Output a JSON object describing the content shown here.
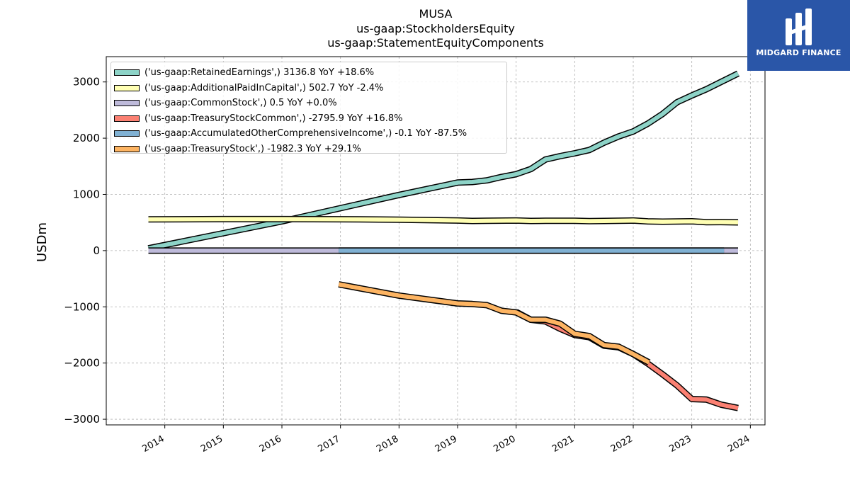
{
  "title": {
    "line1": "MUSA",
    "line2": "us-gaap:StockholdersEquity",
    "line3": "us-gaap:StatementEquityComponents"
  },
  "logo": {
    "text": "MIDGARD FINANCE",
    "color": "#2a56a8"
  },
  "chart_data": {
    "type": "line",
    "ylabel": "USDm",
    "xlabel": "",
    "ylim": [
      -3100,
      3450
    ],
    "xlim": [
      2013.0,
      2024.25
    ],
    "x_ticks": [
      2014,
      2015,
      2016,
      2017,
      2018,
      2019,
      2020,
      2021,
      2022,
      2023,
      2024
    ],
    "y_ticks": [
      -3000,
      -2000,
      -1000,
      0,
      1000,
      2000,
      3000
    ],
    "y_tick_labels": [
      "−3000",
      "−2000",
      "−1000",
      "0",
      "1000",
      "2000",
      "3000"
    ],
    "grid": true,
    "legend_position": "top-left",
    "series": [
      {
        "name": "('us-gaap:RetainedEarnings',) 3136.8 YoY +18.6%",
        "color": "#8dd3c7",
        "points": [
          [
            2013.72,
            40
          ],
          [
            2016.0,
            520
          ],
          [
            2018.0,
            990
          ],
          [
            2019.0,
            1210
          ],
          [
            2019.25,
            1220
          ],
          [
            2019.5,
            1250
          ],
          [
            2019.75,
            1310
          ],
          [
            2020.0,
            1360
          ],
          [
            2020.25,
            1450
          ],
          [
            2020.5,
            1620
          ],
          [
            2020.75,
            1680
          ],
          [
            2021.0,
            1730
          ],
          [
            2021.25,
            1790
          ],
          [
            2021.5,
            1920
          ],
          [
            2021.75,
            2030
          ],
          [
            2022.0,
            2120
          ],
          [
            2022.25,
            2260
          ],
          [
            2022.5,
            2430
          ],
          [
            2022.75,
            2640
          ],
          [
            2023.0,
            2760
          ],
          [
            2023.25,
            2870
          ],
          [
            2023.5,
            3000
          ],
          [
            2023.79,
            3150
          ]
        ]
      },
      {
        "name": "('us-gaap:AdditionalPaidInCapital',) 502.7 YoY -2.4%",
        "color": "#ffffb3",
        "points": [
          [
            2013.72,
            555
          ],
          [
            2015.0,
            560
          ],
          [
            2016.0,
            560
          ],
          [
            2017.0,
            558
          ],
          [
            2018.0,
            550
          ],
          [
            2019.0,
            535
          ],
          [
            2019.25,
            528
          ],
          [
            2019.5,
            530
          ],
          [
            2020.0,
            535
          ],
          [
            2020.25,
            528
          ],
          [
            2020.5,
            530
          ],
          [
            2021.0,
            530
          ],
          [
            2021.25,
            525
          ],
          [
            2021.5,
            528
          ],
          [
            2022.0,
            535
          ],
          [
            2022.25,
            520
          ],
          [
            2022.5,
            515
          ],
          [
            2023.0,
            522
          ],
          [
            2023.25,
            505
          ],
          [
            2023.5,
            508
          ],
          [
            2023.79,
            502
          ]
        ]
      },
      {
        "name": "('us-gaap:CommonStock',) 0.5 YoY +0.0%",
        "color": "#bebada",
        "points": [
          [
            2013.72,
            0.5
          ],
          [
            2023.79,
            0.5
          ]
        ]
      },
      {
        "name": "('us-gaap:TreasuryStockCommon',) -2795.9 YoY +16.8%",
        "color": "#fb8072",
        "points": [
          [
            2020.0,
            -1090
          ],
          [
            2020.25,
            -1230
          ],
          [
            2020.5,
            -1260
          ],
          [
            2020.75,
            -1390
          ],
          [
            2021.0,
            -1500
          ],
          [
            2021.25,
            -1540
          ],
          [
            2021.5,
            -1690
          ],
          [
            2021.75,
            -1720
          ],
          [
            2022.0,
            -1840
          ],
          [
            2022.25,
            -2010
          ],
          [
            2022.5,
            -2200
          ],
          [
            2022.75,
            -2400
          ],
          [
            2023.0,
            -2640
          ],
          [
            2023.25,
            -2650
          ],
          [
            2023.5,
            -2740
          ],
          [
            2023.79,
            -2800
          ]
        ]
      },
      {
        "name": "('us-gaap:AccumulatedOtherComprehensiveIncome',) -0.1 YoY -87.5%",
        "color": "#80b1d3",
        "points": [
          [
            2016.97,
            -0.1
          ],
          [
            2023.55,
            -0.1
          ]
        ]
      },
      {
        "name": "('us-gaap:TreasuryStock',) -1982.3 YoY +29.1%",
        "color": "#fdb462",
        "points": [
          [
            2016.97,
            -600
          ],
          [
            2018.0,
            -800
          ],
          [
            2019.0,
            -940
          ],
          [
            2019.25,
            -950
          ],
          [
            2019.5,
            -970
          ],
          [
            2019.75,
            -1070
          ],
          [
            2020.0,
            -1100
          ],
          [
            2020.25,
            -1230
          ],
          [
            2020.5,
            -1230
          ],
          [
            2020.75,
            -1300
          ],
          [
            2021.0,
            -1480
          ],
          [
            2021.25,
            -1520
          ],
          [
            2021.5,
            -1680
          ],
          [
            2021.75,
            -1710
          ],
          [
            2022.0,
            -1840
          ],
          [
            2022.27,
            -1990
          ]
        ]
      }
    ]
  }
}
